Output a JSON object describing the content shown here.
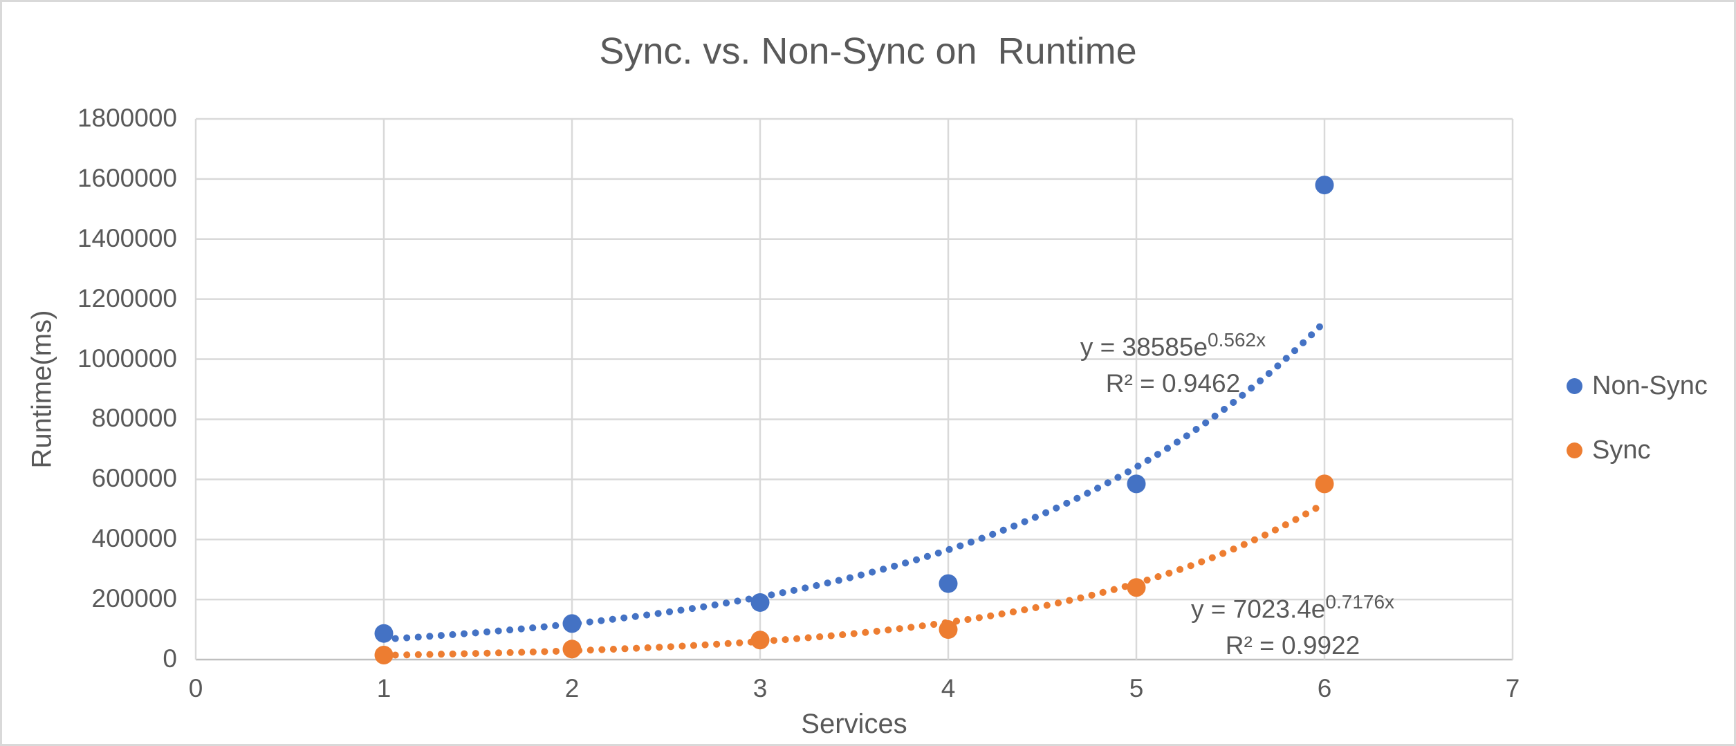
{
  "title": "Sync. vs. Non-Sync on  Runtime",
  "y_axis": {
    "label": "Runtime(ms)"
  },
  "x_axis": {
    "label": "Services"
  },
  "legend": {
    "items": [
      {
        "label": "Non-Sync",
        "color": "#4472c4",
        "marker": "circle-icon"
      },
      {
        "label": "Sync",
        "color": "#ed7d31",
        "marker": "circle-icon"
      }
    ]
  },
  "annotations": {
    "non_sync_eq_base": "y = 38585e",
    "non_sync_eq_exp": "0.562x",
    "non_sync_r2": "R² = 0.9462",
    "sync_eq_base": "y = 7023.4e",
    "sync_eq_exp": "0.7176x",
    "sync_r2": "R² = 0.9922"
  },
  "colors": {
    "non_sync": "#4472c4",
    "sync": "#ed7d31",
    "gridline": "#d9d9d9",
    "axis_line": "#bfbfbf",
    "text": "#595959"
  },
  "chart_data": {
    "type": "scatter",
    "title": "Sync. vs. Non-Sync on  Runtime",
    "xlabel": "Services",
    "ylabel": "Runtime(ms)",
    "xlim": [
      0,
      7
    ],
    "ylim": [
      0,
      1800000
    ],
    "x_ticks": [
      0,
      1,
      2,
      3,
      4,
      5,
      6,
      7
    ],
    "y_ticks": [
      0,
      200000,
      400000,
      600000,
      800000,
      1000000,
      1200000,
      1400000,
      1600000,
      1800000
    ],
    "grid": true,
    "legend_position": "right",
    "series": [
      {
        "name": "Non-Sync",
        "color": "#4472c4",
        "x": [
          1,
          2,
          3,
          4,
          5,
          6
        ],
        "y": [
          87000,
          120000,
          190000,
          253000,
          585000,
          1580000
        ],
        "trendline": {
          "type": "exponential",
          "a": 38585,
          "b": 0.562,
          "equation": "y = 38585e^0.562x",
          "r_squared": 0.9462,
          "range": [
            1,
            6
          ],
          "style": "dotted"
        }
      },
      {
        "name": "Sync",
        "color": "#ed7d31",
        "x": [
          1,
          2,
          3,
          4,
          5,
          6
        ],
        "y": [
          15000,
          35000,
          65000,
          100000,
          240000,
          585000
        ],
        "trendline": {
          "type": "exponential",
          "a": 7023.4,
          "b": 0.7176,
          "equation": "y = 7023.4e^0.7176x",
          "r_squared": 0.9922,
          "range": [
            1,
            6
          ],
          "style": "dotted"
        }
      }
    ]
  }
}
